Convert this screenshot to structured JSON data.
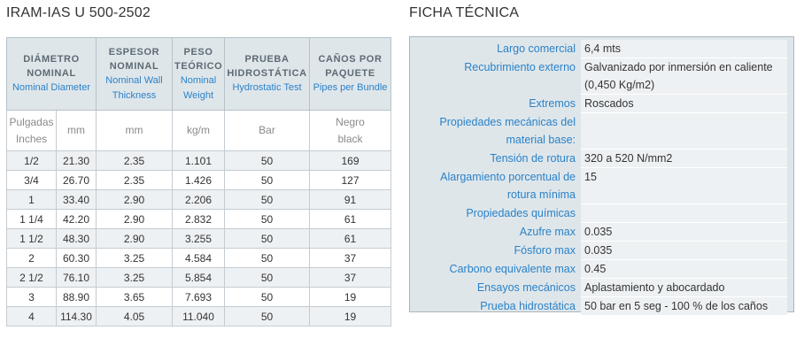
{
  "left_heading": "IRAM-IAS U 500-2502",
  "right_heading": "FICHA TÉCNICA",
  "pipe_table": {
    "headers": [
      {
        "es": "DIÁMETRO",
        "es2": "NOMINAL",
        "en": "Nominal Diameter"
      },
      {
        "es": "ESPESOR",
        "es2": "NOMINAL",
        "en": "Nominal Wall",
        "en2": "Thickness"
      },
      {
        "es": "PESO",
        "es2": "TEÓRICO",
        "en": "Nominal",
        "en2": "Weight"
      },
      {
        "es": "PRUEBA",
        "es2": "HIDROSTÁTICA",
        "en": "Hydrostatic Test"
      },
      {
        "es": "CAÑOS POR",
        "es2": "PAQUETE",
        "en": "Pipes per Bundle"
      }
    ],
    "units": {
      "pulgadas": "Pulgadas",
      "inches": "Inches",
      "mm": "mm",
      "thickness_mm": "mm",
      "weight": "kg/m",
      "pressure": "Bar",
      "negro": "Negro",
      "black": "black"
    },
    "rows": [
      {
        "inch": "1/2",
        "mm": "21.30",
        "thickness": "2.35",
        "weight": "1.101",
        "bar": "50",
        "bundle": "169"
      },
      {
        "inch": "3/4",
        "mm": "26.70",
        "thickness": "2.35",
        "weight": "1.426",
        "bar": "50",
        "bundle": "127"
      },
      {
        "inch": "1",
        "mm": "33.40",
        "thickness": "2.90",
        "weight": "2.206",
        "bar": "50",
        "bundle": "91"
      },
      {
        "inch": "1 1/4",
        "mm": "42.20",
        "thickness": "2.90",
        "weight": "2.832",
        "bar": "50",
        "bundle": "61"
      },
      {
        "inch": "1 1/2",
        "mm": "48.30",
        "thickness": "2.90",
        "weight": "3.255",
        "bar": "50",
        "bundle": "61"
      },
      {
        "inch": "2",
        "mm": "60.30",
        "thickness": "3.25",
        "weight": "4.584",
        "bar": "50",
        "bundle": "37"
      },
      {
        "inch": "2 1/2",
        "mm": "76.10",
        "thickness": "3.25",
        "weight": "5.854",
        "bar": "50",
        "bundle": "37"
      },
      {
        "inch": "3",
        "mm": "88.90",
        "thickness": "3.65",
        "weight": "7.693",
        "bar": "50",
        "bundle": "19"
      },
      {
        "inch": "4",
        "mm": "114.30",
        "thickness": "4.05",
        "weight": "11.040",
        "bar": "50",
        "bundle": "19"
      }
    ]
  },
  "spec": [
    {
      "label": [
        "Largo comercial"
      ],
      "value": [
        "6,4 mts"
      ]
    },
    {
      "label": [
        "Recubrimiento externo"
      ],
      "value": [
        "Galvanizado por inmersión en caliente",
        "(0,450 Kg/m2)"
      ]
    },
    {
      "label": [
        "Extremos"
      ],
      "value": [
        "Roscados"
      ]
    },
    {
      "label": [
        "Propiedades mecánicas del",
        "material base:"
      ],
      "value": [
        "",
        ""
      ]
    },
    {
      "label": [
        "Tensión de rotura"
      ],
      "value": [
        "320 a 520 N/mm2"
      ]
    },
    {
      "label": [
        "Alargamiento porcentual de",
        "rotura mínima"
      ],
      "value": [
        "15",
        ""
      ]
    },
    {
      "label": [
        "Propiedades químicas"
      ],
      "value": [
        ""
      ]
    },
    {
      "label": [
        "Azufre max"
      ],
      "value": [
        "0.035"
      ]
    },
    {
      "label": [
        "Fósforo max"
      ],
      "value": [
        "0.035"
      ]
    },
    {
      "label": [
        "Carbono equivalente max"
      ],
      "value": [
        "0.45"
      ]
    },
    {
      "label": [
        "Ensayos mecánicos"
      ],
      "value": [
        "Aplastamiento y abocardado"
      ]
    },
    {
      "label": [
        "Prueba hidrostática"
      ],
      "value": [
        "50 bar en 5 seg - 100 % de los caños"
      ]
    }
  ]
}
